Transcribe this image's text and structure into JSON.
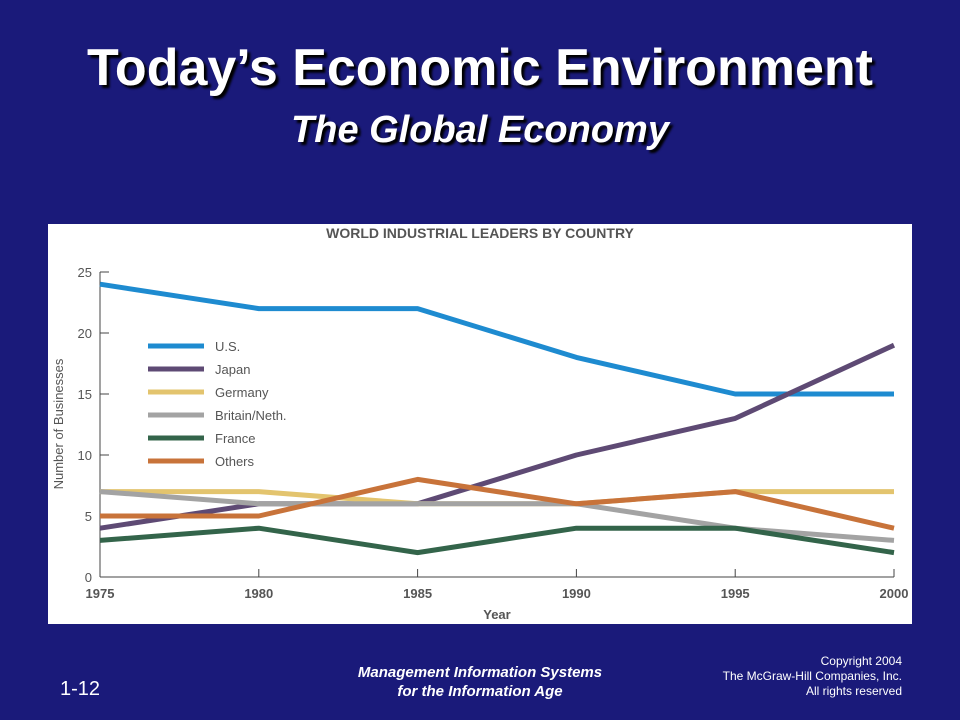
{
  "slide": {
    "title": "Today’s Economic Environment",
    "subtitle": "The Global Economy",
    "number": "1-12",
    "footer_center": [
      "Management Information Systems",
      "for the Information Age"
    ],
    "footer_right": [
      "Copyright 2004",
      "The McGraw-Hill  Companies, Inc.",
      "All rights reserved"
    ]
  },
  "chart_data": {
    "type": "line",
    "title": "WORLD INDUSTRIAL LEADERS BY COUNTRY",
    "xlabel": "Year",
    "ylabel": "Number of Businesses",
    "x": [
      1975,
      1980,
      1985,
      1990,
      1995,
      2000
    ],
    "x_ticks": [
      "1975",
      "1980",
      "1985",
      "1990",
      "1995",
      "2000"
    ],
    "y_ticks": [
      "0",
      "5",
      "10",
      "15",
      "20",
      "25"
    ],
    "ylim": [
      0,
      25
    ],
    "xlim": [
      1975,
      2000
    ],
    "grid": false,
    "legend_position": "left",
    "series": [
      {
        "name": "U.S.",
        "color": "#1e8bd0",
        "values": [
          24,
          22,
          22,
          18,
          15,
          15
        ]
      },
      {
        "name": "Japan",
        "color": "#5e4a74",
        "values": [
          4,
          6,
          6,
          10,
          13,
          19
        ]
      },
      {
        "name": "Germany",
        "color": "#e3c46e",
        "values": [
          7,
          7,
          6,
          6,
          7,
          7
        ]
      },
      {
        "name": "Britain/Neth.",
        "color": "#a3a3a3",
        "values": [
          7,
          6,
          6,
          6,
          4,
          3
        ]
      },
      {
        "name": "France",
        "color": "#33644a",
        "values": [
          3,
          4,
          2,
          4,
          4,
          2
        ]
      },
      {
        "name": "Others",
        "color": "#c8733a",
        "values": [
          5,
          5,
          8,
          6,
          7,
          4
        ]
      }
    ]
  }
}
